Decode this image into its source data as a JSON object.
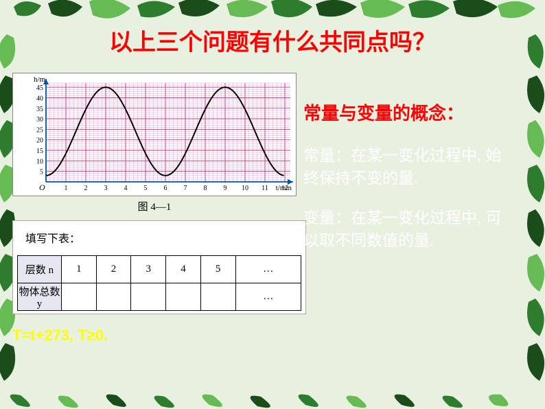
{
  "title": {
    "text": "以上三个问题有什么共同点吗？",
    "color": "#ff0000"
  },
  "chart": {
    "caption": "图 4—1",
    "y_label": "h/m",
    "x_label": "t/min",
    "y_ticks": [
      "5",
      "10",
      "15",
      "20",
      "25",
      "30",
      "35",
      "40",
      "45"
    ],
    "x_ticks": [
      "1",
      "2",
      "3",
      "4",
      "5",
      "6",
      "7",
      "8",
      "9",
      "10",
      "11",
      "12"
    ],
    "y_max": 47,
    "grid_major": "#c02080",
    "grid_minor": "#e8a0d0",
    "axis_color": "#0050b0",
    "curve_color": "#000000",
    "bg": "#ffffff"
  },
  "table": {
    "prompt": "填写下表：",
    "row1_head": "层数 n",
    "row1_cells": [
      "1",
      "2",
      "3",
      "4",
      "5",
      "…"
    ],
    "row2_head": "物体总数 y",
    "row2_cells": [
      "",
      "",
      "",
      "",
      "",
      "…"
    ]
  },
  "formula": "T=t+273, T≥0.",
  "right": {
    "subhead": "常量与变量的概念：",
    "def1": "常量：在某一变化过程中, 始终保持不变的量.",
    "def2": "变量：在某一变化过程中, 可以取不同数值的量."
  },
  "leaves": {
    "dark": "#1a4d1a",
    "mid": "#2e7d2e",
    "light": "#66bb55",
    "pale": "#c8e8b8"
  }
}
